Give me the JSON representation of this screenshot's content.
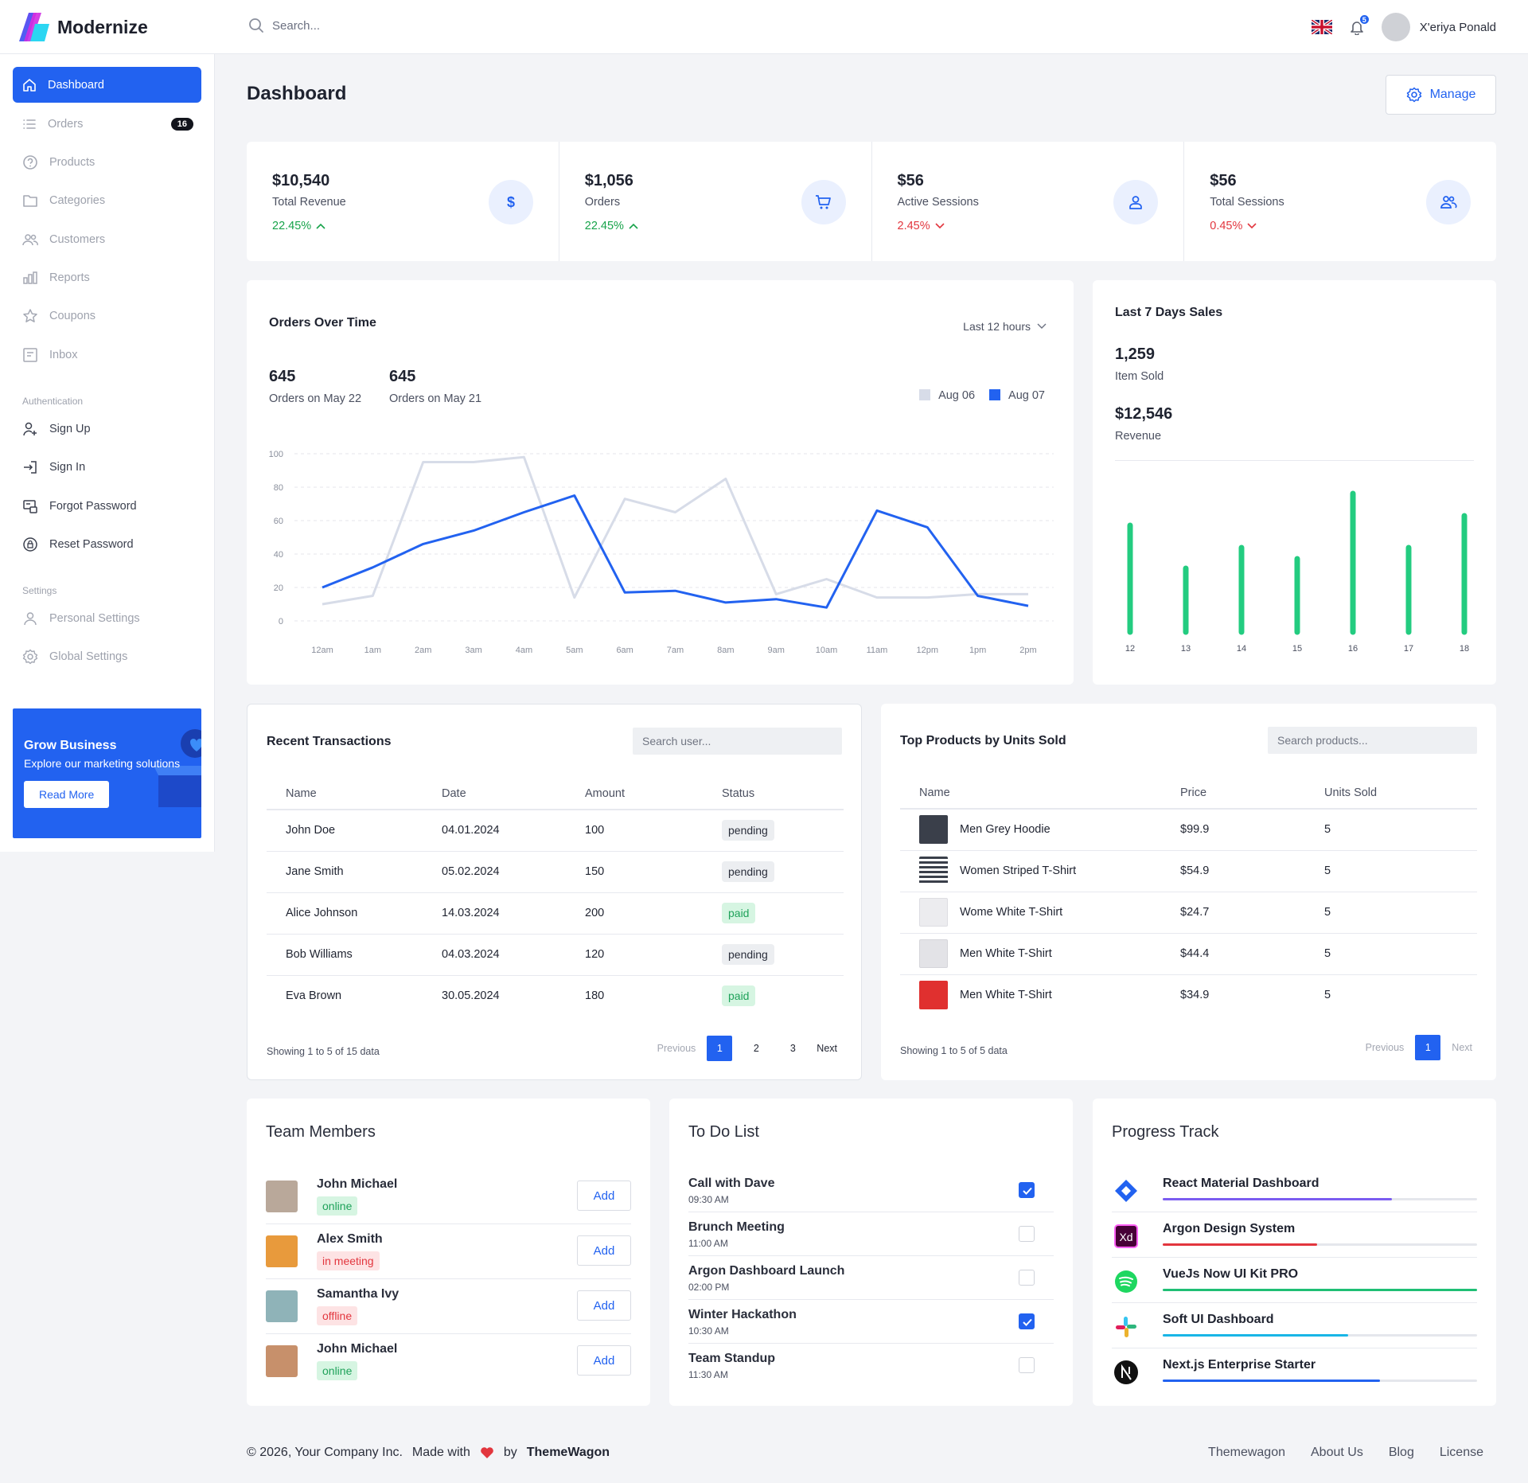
{
  "app": {
    "name": "Modernize"
  },
  "header": {
    "search_placeholder": "Search...",
    "notifications_count": "5",
    "user_name": "X'eriya Ponald"
  },
  "sidebar": {
    "items": [
      {
        "label": "Dashboard",
        "icon": "home-icon",
        "active": true
      },
      {
        "label": "Orders",
        "icon": "list-icon",
        "count": "16"
      },
      {
        "label": "Products",
        "icon": "help-circle-icon"
      },
      {
        "label": "Categories",
        "icon": "folder-icon"
      },
      {
        "label": "Customers",
        "icon": "users-icon"
      },
      {
        "label": "Reports",
        "icon": "bar-chart-icon"
      },
      {
        "label": "Coupons",
        "icon": "star-icon"
      },
      {
        "label": "Inbox",
        "icon": "message-icon"
      }
    ],
    "auth_section": "Authentication",
    "auth_items": [
      {
        "label": "Sign Up",
        "icon": "user-plus-icon"
      },
      {
        "label": "Sign In",
        "icon": "sign-in-icon"
      },
      {
        "label": "Forgot Password",
        "icon": "key-icon"
      },
      {
        "label": "Reset Password",
        "icon": "reset-icon"
      }
    ],
    "settings_section": "Settings",
    "settings_items": [
      {
        "label": "Personal Settings",
        "icon": "user-icon"
      },
      {
        "label": "Global Settings",
        "icon": "gear-icon"
      }
    ],
    "promo": {
      "title": "Grow Business",
      "subtitle": "Explore our marketing solutions",
      "button": "Read More"
    }
  },
  "page": {
    "title": "Dashboard",
    "manage_label": "Manage"
  },
  "stats": [
    {
      "value": "$10,540",
      "label": "Total Revenue",
      "change": "22.45%",
      "trend": "up",
      "icon": "dollar-icon"
    },
    {
      "value": "$1,056",
      "label": "Orders",
      "change": "22.45%",
      "trend": "up",
      "icon": "cart-icon"
    },
    {
      "value": "$56",
      "label": "Active Sessions",
      "change": "2.45%",
      "trend": "down",
      "icon": "user-icon"
    },
    {
      "value": "$56",
      "label": "Total Sessions",
      "change": "0.45%",
      "trend": "down",
      "icon": "users-icon"
    }
  ],
  "orders_over_time": {
    "title": "Orders Over Time",
    "range_label": "Last 12 hours",
    "kpis": [
      {
        "value": "645",
        "label": "Orders on May 22"
      },
      {
        "value": "645",
        "label": "Orders on May 21"
      }
    ],
    "legend": [
      {
        "name": "Aug 06",
        "color": "#d7dce8"
      },
      {
        "name": "Aug 07",
        "color": "#2262f0"
      }
    ]
  },
  "last_7_days": {
    "title": "Last 7 Days Sales",
    "items_sold_value": "1,259",
    "items_sold_label": "Item Sold",
    "revenue_value": "$12,546",
    "revenue_label": "Revenue"
  },
  "chart_data": [
    {
      "type": "line",
      "x": [
        "12am",
        "1am",
        "2am",
        "3am",
        "4am",
        "5am",
        "6am",
        "7am",
        "8am",
        "9am",
        "10am",
        "11am",
        "12pm",
        "1pm",
        "2pm"
      ],
      "yticks": [
        "100",
        "80",
        "60",
        "40",
        "20",
        "0"
      ],
      "ylim": [
        0,
        100
      ],
      "grid": true,
      "legend": "top-right",
      "series": [
        {
          "name": "Aug 06",
          "color": "#d7dce8",
          "values": [
            10,
            15,
            95,
            95,
            98,
            14,
            73,
            65,
            85,
            16,
            25,
            14,
            14,
            16,
            16
          ]
        },
        {
          "name": "Aug 07",
          "color": "#2262f0",
          "values": [
            20,
            32,
            46,
            54,
            65,
            75,
            17,
            18,
            11,
            13,
            8,
            66,
            56,
            15,
            9
          ]
        }
      ]
    },
    {
      "type": "bar",
      "categories": [
        "12",
        "13",
        "14",
        "15",
        "16",
        "17",
        "18"
      ],
      "values": [
        67,
        40,
        53,
        46,
        87,
        53,
        73
      ],
      "ylim": [
        0,
        100
      ],
      "color": "#23cc80"
    }
  ],
  "transactions": {
    "title": "Recent Transactions",
    "search_placeholder": "Search user...",
    "columns": [
      "Name",
      "Date",
      "Amount",
      "Status"
    ],
    "rows": [
      {
        "name": "John Doe",
        "date": "04.01.2024",
        "amount": "100",
        "status": "pending"
      },
      {
        "name": "Jane Smith",
        "date": "05.02.2024",
        "amount": "150",
        "status": "pending"
      },
      {
        "name": "Alice Johnson",
        "date": "14.03.2024",
        "amount": "200",
        "status": "paid"
      },
      {
        "name": "Bob Williams",
        "date": "04.03.2024",
        "amount": "120",
        "status": "pending"
      },
      {
        "name": "Eva Brown",
        "date": "30.05.2024",
        "amount": "180",
        "status": "paid"
      }
    ],
    "footer": "Showing 1 to 5 of 15 data",
    "pager": {
      "prev": "Previous",
      "pages": [
        "1",
        "2",
        "3"
      ],
      "next": "Next"
    }
  },
  "top_products": {
    "title": "Top Products by Units Sold",
    "search_placeholder": "Search products...",
    "columns": [
      "Name",
      "Price",
      "Units Sold"
    ],
    "rows": [
      {
        "name": "Men Grey Hoodie",
        "price": "$99.9",
        "units": "5",
        "thumb_color": "#3a3f4a"
      },
      {
        "name": "Women Striped T-Shirt",
        "price": "$54.9",
        "units": "5",
        "thumb_color": "#7d8290"
      },
      {
        "name": "Wome White T-Shirt",
        "price": "$24.7",
        "units": "5",
        "thumb_color": "#e9e9ec"
      },
      {
        "name": "Men White T-Shirt",
        "price": "$44.4",
        "units": "5",
        "thumb_color": "#dcdce0"
      },
      {
        "name": "Men White T-Shirt",
        "price": "$34.9",
        "units": "5",
        "thumb_color": "#e0302f"
      }
    ],
    "footer": "Showing 1 to 5 of 5 data",
    "pager": {
      "prev": "Previous",
      "pages": [
        "1"
      ],
      "next": "Next"
    }
  },
  "team": {
    "title": "Team Members",
    "add_label": "Add",
    "members": [
      {
        "name": "John Michael",
        "status": "online",
        "kind": "online",
        "avatar_color": "#b9a89a"
      },
      {
        "name": "Alex Smith",
        "status": "in meeting",
        "kind": "meeting",
        "avatar_color": "#e89a3c"
      },
      {
        "name": "Samantha Ivy",
        "status": "offline",
        "kind": "offline",
        "avatar_color": "#8fb3b8"
      },
      {
        "name": "John Michael",
        "status": "online",
        "kind": "online",
        "avatar_color": "#c7906b"
      }
    ]
  },
  "todo": {
    "title": "To Do List",
    "items": [
      {
        "name": "Call with Dave",
        "time": "09:30 AM",
        "done": true
      },
      {
        "name": "Brunch Meeting",
        "time": "11:00 AM",
        "done": false
      },
      {
        "name": "Argon Dashboard Launch",
        "time": "02:00 PM",
        "done": false
      },
      {
        "name": "Winter Hackathon",
        "time": "10:30 AM",
        "done": true
      },
      {
        "name": "Team Standup",
        "time": "11:30 AM",
        "done": false
      }
    ]
  },
  "progress": {
    "title": "Progress Track",
    "items": [
      {
        "name": "React Material Dashboard",
        "progress": 0.73,
        "color": "#7b5cf0",
        "icon": "jira-icon"
      },
      {
        "name": "Argon Design System",
        "progress": 0.49,
        "color": "#e2363e",
        "icon": "xd-icon"
      },
      {
        "name": "VueJs Now UI Kit PRO",
        "progress": 1.0,
        "color": "#1fbf75",
        "icon": "spotify-icon"
      },
      {
        "name": "Soft UI Dashboard",
        "progress": 0.59,
        "color": "#19b5e6",
        "icon": "slack-icon"
      },
      {
        "name": "Next.js Enterprise Starter",
        "progress": 0.69,
        "color": "#2262f0",
        "icon": "nextjs-icon"
      }
    ]
  },
  "footer": {
    "copyright": "© 2026, Your Company Inc.",
    "made_with": "Made with",
    "by": "by",
    "brand": "ThemeWagon",
    "links": [
      "Themewagon",
      "About Us",
      "Blog",
      "License"
    ]
  }
}
